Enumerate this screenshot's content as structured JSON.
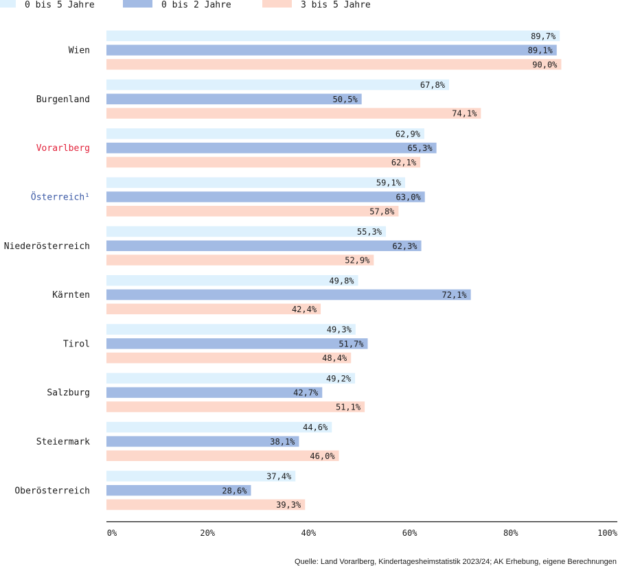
{
  "chart_data": {
    "type": "bar",
    "orientation": "horizontal",
    "categories": [
      "Wien",
      "Burgenland",
      "Vorarlberg",
      "Österreich¹",
      "Niederösterreich",
      "Kärnten",
      "Tirol",
      "Salzburg",
      "Steiermark",
      "Oberösterreich"
    ],
    "category_colors": {
      "Vorarlberg": "#e2223a",
      "Österreich¹": "#3c5aa6"
    },
    "series": [
      {
        "name": "0 bis 5 Jahre",
        "color": "#def1fd",
        "values": [
          89.7,
          67.8,
          62.9,
          59.1,
          55.3,
          49.8,
          49.3,
          49.2,
          44.6,
          37.4
        ],
        "labels": [
          "89,7%",
          "67,8%",
          "62,9%",
          "59,1%",
          "55,3%",
          "49,8%",
          "49,3%",
          "49,2%",
          "44,6%",
          "37,4%"
        ]
      },
      {
        "name": "0 bis 2 Jahre",
        "color": "#a3bbe4",
        "values": [
          89.1,
          50.5,
          65.3,
          63.0,
          62.3,
          72.1,
          51.7,
          42.7,
          38.1,
          28.6
        ],
        "labels": [
          "89,1%",
          "50,5%",
          "65,3%",
          "63,0%",
          "62,3%",
          "72,1%",
          "51,7%",
          "42,7%",
          "38,1%",
          "28,6%"
        ]
      },
      {
        "name": "3 bis 5 Jahre",
        "color": "#fdd8cb",
        "values": [
          90.0,
          74.1,
          62.1,
          57.8,
          52.9,
          42.4,
          48.4,
          51.1,
          46.0,
          39.3
        ],
        "labels": [
          "90,0%",
          "74,1%",
          "62,1%",
          "57,8%",
          "52,9%",
          "42,4%",
          "48,4%",
          "51,1%",
          "46,0%",
          "39,3%"
        ]
      }
    ],
    "xlim": [
      0,
      100
    ],
    "x_ticks": [
      0,
      20,
      40,
      60,
      80,
      100
    ],
    "x_tick_labels": [
      "0%",
      "20%",
      "40%",
      "60%",
      "80%",
      "100%"
    ],
    "legend_position": "top-left",
    "grid": false,
    "source": "Quelle: Land Vorarlberg, Kindertagesheimstatistik 2023/24; AK Erhebung, eigene Berechnungen"
  }
}
